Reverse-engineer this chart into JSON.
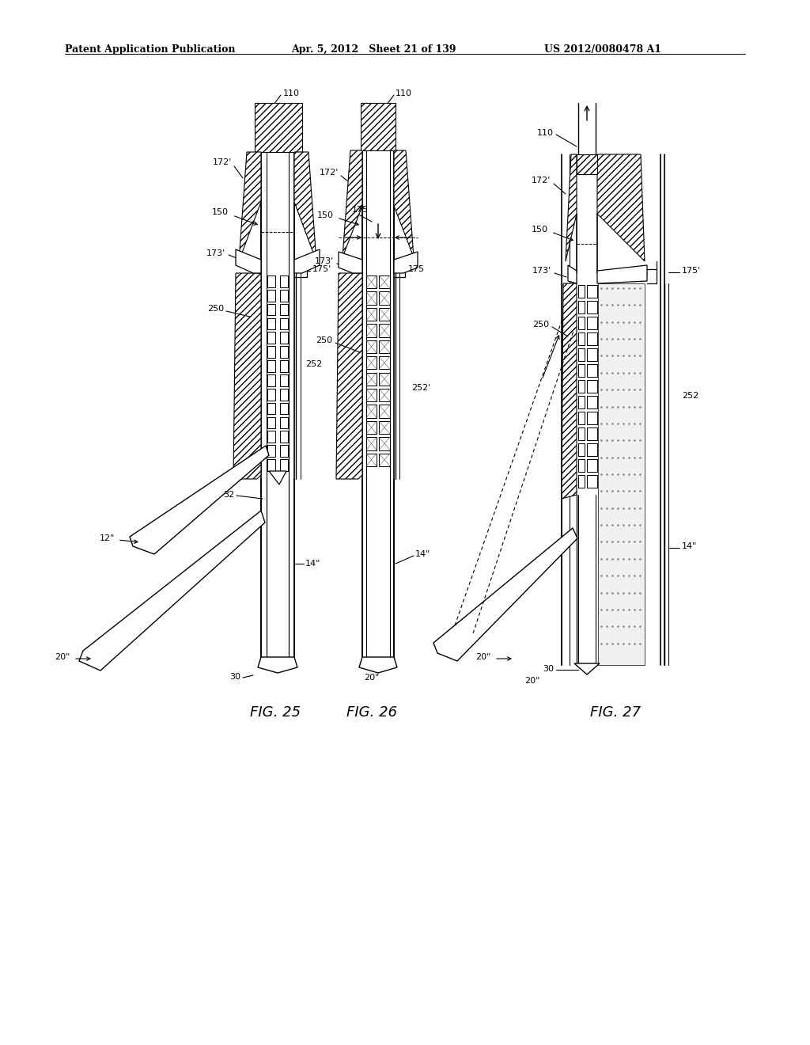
{
  "bg_color": "#ffffff",
  "header_left": "Patent Application Publication",
  "header_center": "Apr. 5, 2012   Sheet 21 of 139",
  "header_right": "US 2012/0080478 A1",
  "fig25_label": "FIG. 25",
  "fig26_label": "FIG. 26",
  "fig27_label": "FIG. 27",
  "line_color": "#000000"
}
